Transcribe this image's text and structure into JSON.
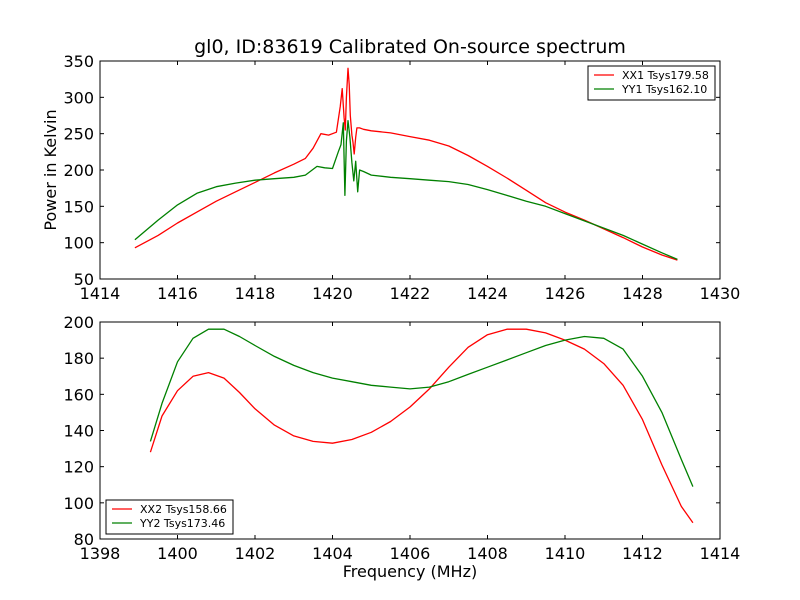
{
  "title": "gl0, ID:83619 Calibrated On-source spectrum",
  "chart_data": [
    {
      "type": "line",
      "xlabel": "",
      "ylabel": "Power in Kelvin",
      "xlim": [
        1414,
        1430
      ],
      "ylim": [
        50,
        350
      ],
      "xticks": [
        1414,
        1416,
        1418,
        1420,
        1422,
        1424,
        1426,
        1428,
        1430
      ],
      "yticks": [
        50,
        100,
        150,
        200,
        250,
        300,
        350
      ],
      "legend_position": "upper right",
      "series": [
        {
          "name": "XX1 Tsys179.58",
          "color": "#ff0000",
          "x": [
            1414.9,
            1415.5,
            1416.0,
            1416.5,
            1417.0,
            1417.5,
            1418.0,
            1418.5,
            1419.0,
            1419.3,
            1419.5,
            1419.7,
            1419.9,
            1420.1,
            1420.2,
            1420.25,
            1420.3,
            1420.33,
            1420.36,
            1420.4,
            1420.43,
            1420.46,
            1420.5,
            1420.53,
            1420.56,
            1420.6,
            1420.63,
            1420.7,
            1420.8,
            1421.0,
            1421.5,
            1422.0,
            1422.5,
            1423.0,
            1423.5,
            1424.0,
            1424.5,
            1425.0,
            1425.5,
            1426.0,
            1426.5,
            1427.0,
            1427.5,
            1428.0,
            1428.5,
            1428.9
          ],
          "y": [
            93,
            110,
            127,
            142,
            157,
            170,
            183,
            196,
            208,
            216,
            230,
            250,
            248,
            252,
            288,
            312,
            272,
            255,
            300,
            340,
            318,
            275,
            248,
            238,
            222,
            245,
            258,
            258,
            256,
            254,
            251,
            246,
            241,
            233,
            220,
            205,
            189,
            172,
            155,
            142,
            131,
            119,
            107,
            94,
            83,
            76
          ]
        },
        {
          "name": "YY1 Tsys162.10",
          "color": "#008000",
          "x": [
            1414.9,
            1415.5,
            1416.0,
            1416.5,
            1417.0,
            1417.5,
            1418.0,
            1418.5,
            1419.0,
            1419.3,
            1419.6,
            1419.8,
            1420.0,
            1420.15,
            1420.22,
            1420.28,
            1420.32,
            1420.36,
            1420.4,
            1420.45,
            1420.5,
            1420.55,
            1420.6,
            1420.65,
            1420.7,
            1420.8,
            1421.0,
            1421.5,
            1422.0,
            1422.5,
            1423.0,
            1423.5,
            1424.0,
            1424.5,
            1425.0,
            1425.5,
            1426.0,
            1426.5,
            1427.0,
            1427.5,
            1428.0,
            1428.5,
            1428.9
          ],
          "y": [
            104,
            131,
            152,
            168,
            177,
            182,
            186,
            188,
            190,
            193,
            205,
            203,
            202,
            225,
            235,
            265,
            165,
            240,
            268,
            245,
            210,
            185,
            212,
            170,
            200,
            198,
            193,
            190,
            188,
            186,
            184,
            180,
            173,
            165,
            157,
            150,
            140,
            130,
            120,
            110,
            98,
            86,
            77
          ]
        }
      ]
    },
    {
      "type": "line",
      "xlabel": "Frequency (MHz)",
      "ylabel": "",
      "xlim": [
        1398,
        1414
      ],
      "ylim": [
        80,
        200
      ],
      "xticks": [
        1398,
        1400,
        1402,
        1404,
        1406,
        1408,
        1410,
        1412,
        1414
      ],
      "yticks": [
        80,
        100,
        120,
        140,
        160,
        180,
        200
      ],
      "legend_position": "lower left",
      "series": [
        {
          "name": "XX2 Tsys158.66",
          "color": "#ff0000",
          "x": [
            1399.3,
            1399.6,
            1400.0,
            1400.4,
            1400.8,
            1401.2,
            1401.6,
            1402.0,
            1402.5,
            1403.0,
            1403.5,
            1404.0,
            1404.5,
            1405.0,
            1405.5,
            1406.0,
            1406.5,
            1407.0,
            1407.5,
            1408.0,
            1408.5,
            1409.0,
            1409.5,
            1410.0,
            1410.5,
            1411.0,
            1411.5,
            1412.0,
            1412.5,
            1413.0,
            1413.3
          ],
          "y": [
            128,
            148,
            162,
            170,
            172,
            169,
            161,
            152,
            143,
            137,
            134,
            133,
            135,
            139,
            145,
            153,
            163,
            175,
            186,
            193,
            196,
            196,
            194,
            190,
            185,
            177,
            165,
            146,
            121,
            98,
            89
          ]
        },
        {
          "name": "YY2 Tsys173.46",
          "color": "#008000",
          "x": [
            1399.3,
            1399.6,
            1400.0,
            1400.4,
            1400.8,
            1401.2,
            1401.6,
            1402.0,
            1402.5,
            1403.0,
            1403.5,
            1404.0,
            1404.5,
            1405.0,
            1405.5,
            1406.0,
            1406.5,
            1407.0,
            1407.5,
            1408.0,
            1408.5,
            1409.0,
            1409.5,
            1410.0,
            1410.5,
            1411.0,
            1411.5,
            1412.0,
            1412.5,
            1413.0,
            1413.3
          ],
          "y": [
            134,
            155,
            178,
            191,
            196,
            196,
            192,
            187,
            181,
            176,
            172,
            169,
            167,
            165,
            164,
            163,
            164,
            167,
            171,
            175,
            179,
            183,
            187,
            190,
            192,
            191,
            185,
            170,
            150,
            124,
            109
          ]
        }
      ]
    }
  ]
}
